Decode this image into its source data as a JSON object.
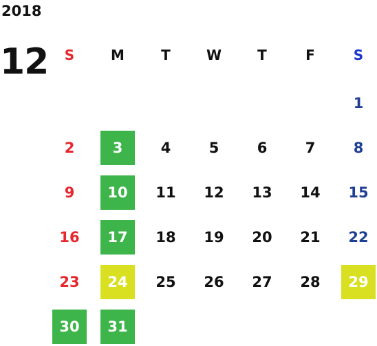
{
  "year": "2018",
  "month": "12",
  "weekdays": [
    "S",
    "M",
    "T",
    "W",
    "T",
    "F",
    "S"
  ],
  "weeks": [
    [
      null,
      null,
      null,
      null,
      null,
      null,
      {
        "day": "1"
      }
    ],
    [
      {
        "day": "2"
      },
      {
        "day": "3",
        "highlight": "green"
      },
      {
        "day": "4"
      },
      {
        "day": "5"
      },
      {
        "day": "6"
      },
      {
        "day": "7"
      },
      {
        "day": "8"
      }
    ],
    [
      {
        "day": "9"
      },
      {
        "day": "10",
        "highlight": "green"
      },
      {
        "day": "11"
      },
      {
        "day": "12"
      },
      {
        "day": "13"
      },
      {
        "day": "14"
      },
      {
        "day": "15"
      }
    ],
    [
      {
        "day": "16"
      },
      {
        "day": "17",
        "highlight": "green"
      },
      {
        "day": "18"
      },
      {
        "day": "19"
      },
      {
        "day": "20"
      },
      {
        "day": "21"
      },
      {
        "day": "22"
      }
    ],
    [
      {
        "day": "23"
      },
      {
        "day": "24",
        "highlight": "yellow"
      },
      {
        "day": "25"
      },
      {
        "day": "26"
      },
      {
        "day": "27"
      },
      {
        "day": "28"
      },
      {
        "day": "29",
        "highlight": "yellow"
      }
    ],
    [
      {
        "day": "30",
        "highlight": "green"
      },
      {
        "day": "31",
        "highlight": "green"
      },
      null,
      null,
      null,
      null,
      null
    ]
  ],
  "colors": {
    "sunday": "#e8262d",
    "saturday": "#1f3f94",
    "highlight_green": "#3db54a",
    "highlight_yellow": "#d8e021"
  }
}
